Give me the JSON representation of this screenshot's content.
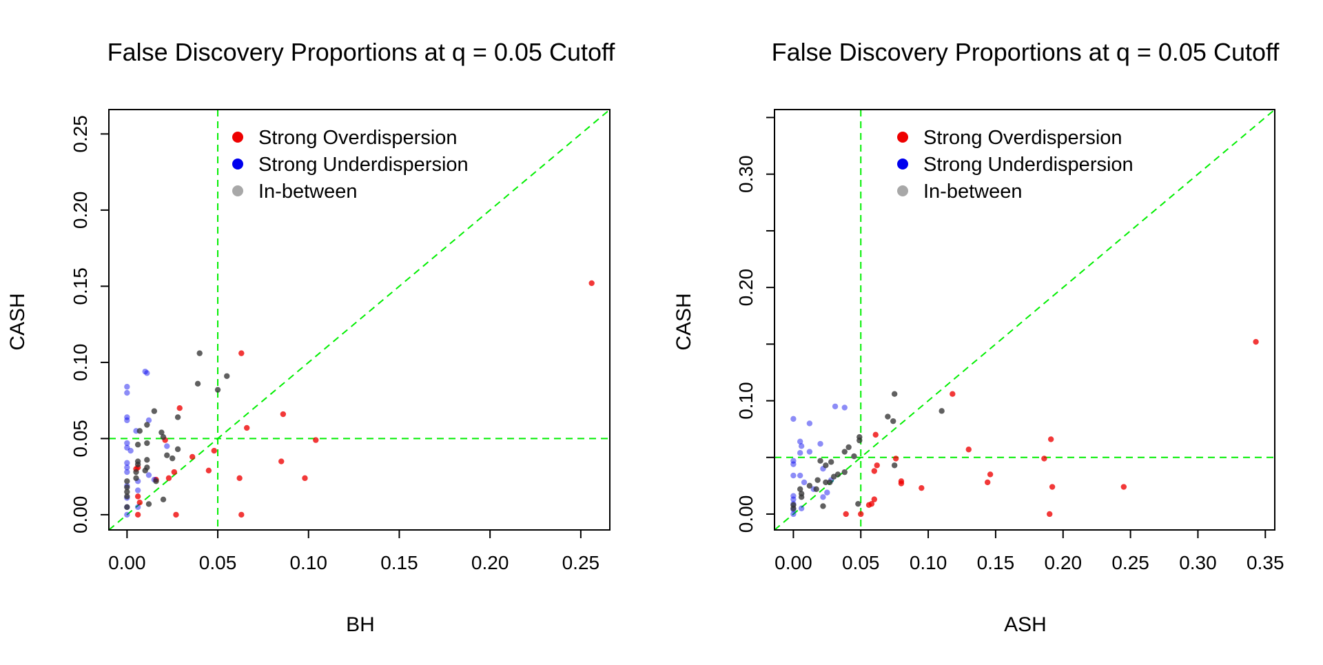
{
  "chart_data": [
    {
      "type": "scatter",
      "title": "False Discovery Proportions at q = 0.05 Cutoff",
      "xlabel": "BH",
      "ylabel": "CASH",
      "xlim": [
        -0.01,
        0.266
      ],
      "ylim": [
        -0.01,
        0.266
      ],
      "xticks": [
        "0.00",
        "0.05",
        "0.10",
        "0.15",
        "0.20",
        "0.25"
      ],
      "yticks": [
        "0.00",
        "0.05",
        "0.10",
        "0.15",
        "0.20",
        "0.25"
      ],
      "reference_lines": {
        "x": 0.05,
        "y": 0.05,
        "diagonal": true,
        "color": "#00ee00"
      },
      "legend": {
        "position": "top",
        "entries": [
          {
            "label": "Strong Overdispersion",
            "color": "#ee0000"
          },
          {
            "label": "Strong Underdispersion",
            "color": "#0000ee"
          },
          {
            "label": "In-between",
            "color": "#a8a8a8"
          }
        ]
      },
      "series": [
        {
          "group": "overdispersion",
          "color": "#ee0000",
          "points": [
            [
              0.256,
              0.152
            ],
            [
              0.063,
              0.106
            ],
            [
              0.086,
              0.066
            ],
            [
              0.066,
              0.057
            ],
            [
              0.104,
              0.049
            ],
            [
              0.085,
              0.035
            ],
            [
              0.098,
              0.024
            ],
            [
              0.062,
              0.024
            ],
            [
              0.048,
              0.042
            ],
            [
              0.045,
              0.029
            ],
            [
              0.036,
              0.038
            ],
            [
              0.063,
              0.0
            ],
            [
              0.029,
              0.07
            ],
            [
              0.027,
              0.0
            ],
            [
              0.026,
              0.028
            ],
            [
              0.023,
              0.024
            ],
            [
              0.021,
              0.049
            ],
            [
              0.016,
              0.023
            ],
            [
              0.006,
              0.031
            ],
            [
              0.006,
              0.012
            ],
            [
              0.007,
              0.008
            ],
            [
              0.006,
              0.0
            ],
            [
              0.005,
              0.03
            ]
          ]
        },
        {
          "group": "underdispersion",
          "color": "#0000ee",
          "points": [
            [
              0.0,
              0.084
            ],
            [
              0.0,
              0.08
            ],
            [
              0.0,
              0.064
            ],
            [
              0.0,
              0.062
            ],
            [
              0.0,
              0.047
            ],
            [
              0.0,
              0.044
            ],
            [
              0.0,
              0.034
            ],
            [
              0.0,
              0.031
            ],
            [
              0.0,
              0.028
            ],
            [
              0.0,
              0.019
            ],
            [
              0.0,
              0.011
            ],
            [
              0.0,
              0.005
            ],
            [
              0.0,
              0.0
            ],
            [
              0.01,
              0.094
            ],
            [
              0.011,
              0.093
            ],
            [
              0.012,
              0.062
            ],
            [
              0.012,
              0.026
            ],
            [
              0.006,
              0.022
            ],
            [
              0.006,
              0.016
            ],
            [
              0.006,
              0.005
            ],
            [
              0.015,
              0.023
            ],
            [
              0.022,
              0.045
            ],
            [
              0.005,
              0.055
            ],
            [
              0.002,
              0.042
            ]
          ]
        },
        {
          "group": "in-between",
          "color": "#333333",
          "points": [
            [
              0.04,
              0.106
            ],
            [
              0.039,
              0.086
            ],
            [
              0.055,
              0.091
            ],
            [
              0.05,
              0.082
            ],
            [
              0.015,
              0.068
            ],
            [
              0.028,
              0.064
            ],
            [
              0.011,
              0.059
            ],
            [
              0.007,
              0.055
            ],
            [
              0.019,
              0.054
            ],
            [
              0.02,
              0.051
            ],
            [
              0.011,
              0.047
            ],
            [
              0.006,
              0.046
            ],
            [
              0.028,
              0.043
            ],
            [
              0.022,
              0.039
            ],
            [
              0.025,
              0.037
            ],
            [
              0.011,
              0.036
            ],
            [
              0.006,
              0.035
            ],
            [
              0.006,
              0.033
            ],
            [
              0.011,
              0.031
            ],
            [
              0.01,
              0.029
            ],
            [
              0.005,
              0.028
            ],
            [
              0.0,
              0.022
            ],
            [
              0.0,
              0.018
            ],
            [
              0.0,
              0.015
            ],
            [
              0.0,
              0.012
            ],
            [
              0.02,
              0.01
            ],
            [
              0.012,
              0.007
            ],
            [
              0.0,
              0.005
            ],
            [
              0.005,
              0.024
            ],
            [
              0.016,
              0.022
            ]
          ]
        }
      ]
    },
    {
      "type": "scatter",
      "title": "False Discovery Proportions at q = 0.05 Cutoff",
      "xlabel": "ASH",
      "ylabel": "CASH",
      "xlim": [
        -0.014,
        0.357
      ],
      "ylim": [
        -0.014,
        0.357
      ],
      "xticks": [
        "0.00",
        "0.05",
        "0.10",
        "0.15",
        "0.20",
        "0.25",
        "0.30",
        "0.35"
      ],
      "yticks": [
        "0.00",
        "0.10",
        "0.20",
        "0.30"
      ],
      "reference_lines": {
        "x": 0.05,
        "y": 0.05,
        "diagonal": true,
        "color": "#00ee00"
      },
      "legend": {
        "position": "top",
        "entries": [
          {
            "label": "Strong Overdispersion",
            "color": "#ee0000"
          },
          {
            "label": "Strong Underdispersion",
            "color": "#0000ee"
          },
          {
            "label": "In-between",
            "color": "#a8a8a8"
          }
        ]
      },
      "series": [
        {
          "group": "overdispersion",
          "color": "#ee0000",
          "points": [
            [
              0.343,
              0.152
            ],
            [
              0.118,
              0.106
            ],
            [
              0.191,
              0.066
            ],
            [
              0.13,
              0.057
            ],
            [
              0.186,
              0.049
            ],
            [
              0.076,
              0.049
            ],
            [
              0.146,
              0.035
            ],
            [
              0.144,
              0.028
            ],
            [
              0.192,
              0.024
            ],
            [
              0.245,
              0.024
            ],
            [
              0.095,
              0.023
            ],
            [
              0.08,
              0.029
            ],
            [
              0.08,
              0.027
            ],
            [
              0.061,
              0.07
            ],
            [
              0.062,
              0.043
            ],
            [
              0.06,
              0.038
            ],
            [
              0.06,
              0.013
            ],
            [
              0.058,
              0.009
            ],
            [
              0.056,
              0.008
            ],
            [
              0.05,
              0.0
            ],
            [
              0.039,
              0.0
            ],
            [
              0.19,
              0.0
            ]
          ]
        },
        {
          "group": "underdispersion",
          "color": "#0000ee",
          "points": [
            [
              0.0,
              0.084
            ],
            [
              0.012,
              0.08
            ],
            [
              0.031,
              0.095
            ],
            [
              0.038,
              0.094
            ],
            [
              0.005,
              0.064
            ],
            [
              0.02,
              0.062
            ],
            [
              0.006,
              0.06
            ],
            [
              0.0,
              0.047
            ],
            [
              0.0,
              0.044
            ],
            [
              0.005,
              0.054
            ],
            [
              0.012,
              0.055
            ],
            [
              0.022,
              0.04
            ],
            [
              0.005,
              0.034
            ],
            [
              0.0,
              0.034
            ],
            [
              0.008,
              0.028
            ],
            [
              0.015,
              0.022
            ],
            [
              0.022,
              0.015
            ],
            [
              0.0,
              0.016
            ],
            [
              0.0,
              0.013
            ],
            [
              0.0,
              0.009
            ],
            [
              0.006,
              0.005
            ],
            [
              0.0,
              0.004
            ],
            [
              0.0,
              0.0
            ],
            [
              0.028,
              0.03
            ],
            [
              0.025,
              0.019
            ]
          ]
        },
        {
          "group": "in-between",
          "color": "#333333",
          "points": [
            [
              0.075,
              0.106
            ],
            [
              0.11,
              0.091
            ],
            [
              0.07,
              0.086
            ],
            [
              0.074,
              0.082
            ],
            [
              0.049,
              0.068
            ],
            [
              0.049,
              0.065
            ],
            [
              0.041,
              0.059
            ],
            [
              0.038,
              0.055
            ],
            [
              0.075,
              0.043
            ],
            [
              0.045,
              0.051
            ],
            [
              0.02,
              0.047
            ],
            [
              0.028,
              0.046
            ],
            [
              0.024,
              0.043
            ],
            [
              0.038,
              0.037
            ],
            [
              0.033,
              0.035
            ],
            [
              0.03,
              0.033
            ],
            [
              0.027,
              0.028
            ],
            [
              0.024,
              0.028
            ],
            [
              0.018,
              0.03
            ],
            [
              0.012,
              0.025
            ],
            [
              0.006,
              0.018
            ],
            [
              0.006,
              0.015
            ],
            [
              0.022,
              0.007
            ],
            [
              0.048,
              0.009
            ],
            [
              0.0,
              0.008
            ],
            [
              0.0,
              0.005
            ],
            [
              0.017,
              0.022
            ],
            [
              0.005,
              0.022
            ]
          ]
        }
      ]
    }
  ]
}
